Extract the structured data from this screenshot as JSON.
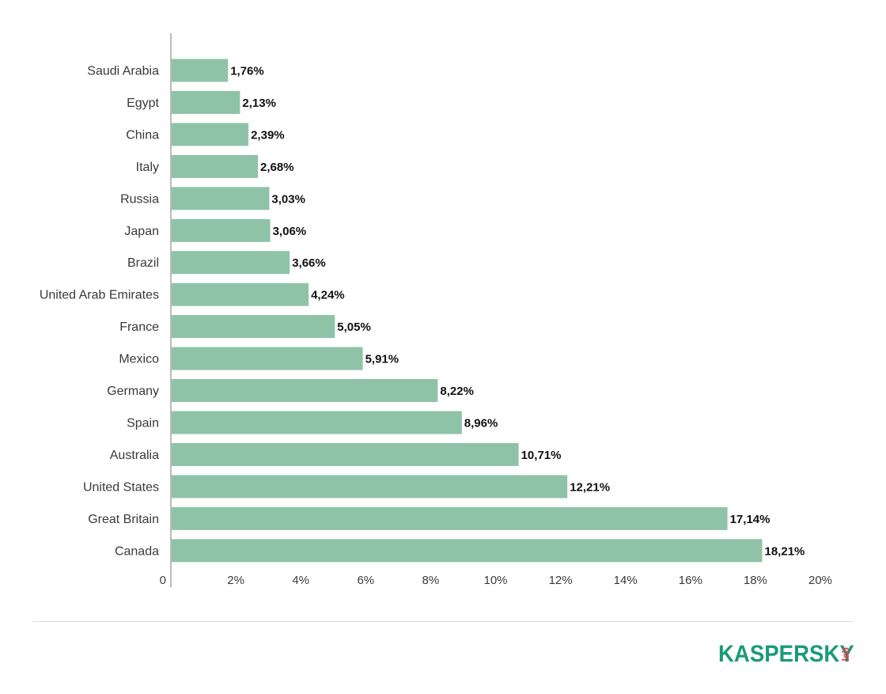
{
  "chart_data": {
    "type": "bar",
    "orientation": "horizontal",
    "title": "",
    "xlabel": "",
    "ylabel": "",
    "categories": [
      "Saudi Arabia",
      "Egypt",
      "China",
      "Italy",
      "Russia",
      "Japan",
      "Brazil",
      "United Arab Emirates",
      "France",
      "Mexico",
      "Germany",
      "Spain",
      "Australia",
      "United States",
      "Great Britain",
      "Canada"
    ],
    "values": [
      1.76,
      2.13,
      2.39,
      2.68,
      3.03,
      3.06,
      3.66,
      4.24,
      5.05,
      5.91,
      8.22,
      8.96,
      10.71,
      12.21,
      17.14,
      18.21
    ],
    "value_labels": [
      "1,76%",
      "2,13%",
      "2,39%",
      "2,68%",
      "3,03%",
      "3,06%",
      "3,66%",
      "4,24%",
      "5,05%",
      "5,91%",
      "8,22%",
      "8,96%",
      "10,71%",
      "12,21%",
      "17,14%",
      "18,21%"
    ],
    "xlim": [
      0,
      20
    ],
    "x_ticks": [
      0,
      2,
      4,
      6,
      8,
      10,
      12,
      14,
      16,
      18,
      20
    ],
    "x_tick_labels": [
      "0",
      "2%",
      "4%",
      "6%",
      "8%",
      "10%",
      "12%",
      "14%",
      "16%",
      "18%",
      "20%"
    ],
    "grid": false,
    "bar_color": "#8fc3a7",
    "axis_color": "#8c8c8c"
  },
  "logo": {
    "word": "KASPERSKY",
    "suffix": "lab",
    "word_color": "#1b9a78",
    "suffix_color": "#e53a3a"
  }
}
